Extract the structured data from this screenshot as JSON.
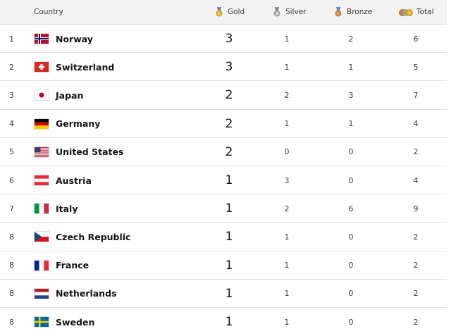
{
  "header": {
    "country": "Country",
    "gold": "Gold",
    "silver": "Silver",
    "bronze": "Bronze",
    "total": "Total"
  },
  "colors": {
    "gold": "#d4a017",
    "silver": "#9e9e9e",
    "bronze": "#c27a32",
    "header_bg": "#f2f2f2"
  },
  "rows": [
    {
      "rank": "1",
      "country": "Norway",
      "flag": "norway-flag",
      "gold": "3",
      "silver": "1",
      "bronze": "2",
      "total": "6"
    },
    {
      "rank": "2",
      "country": "Switzerland",
      "flag": "switzerland-flag",
      "gold": "3",
      "silver": "1",
      "bronze": "1",
      "total": "5"
    },
    {
      "rank": "3",
      "country": "Japan",
      "flag": "japan-flag",
      "gold": "2",
      "silver": "2",
      "bronze": "3",
      "total": "7"
    },
    {
      "rank": "4",
      "country": "Germany",
      "flag": "germany-flag",
      "gold": "2",
      "silver": "1",
      "bronze": "1",
      "total": "4"
    },
    {
      "rank": "5",
      "country": "United States",
      "flag": "usa-flag",
      "gold": "2",
      "silver": "0",
      "bronze": "0",
      "total": "2"
    },
    {
      "rank": "6",
      "country": "Austria",
      "flag": "austria-flag",
      "gold": "1",
      "silver": "3",
      "bronze": "0",
      "total": "4"
    },
    {
      "rank": "7",
      "country": "Italy",
      "flag": "italy-flag",
      "gold": "1",
      "silver": "2",
      "bronze": "6",
      "total": "9"
    },
    {
      "rank": "8",
      "country": "Czech Republic",
      "flag": "czech-flag",
      "gold": "1",
      "silver": "1",
      "bronze": "0",
      "total": "2"
    },
    {
      "rank": "8",
      "country": "France",
      "flag": "france-flag",
      "gold": "1",
      "silver": "1",
      "bronze": "0",
      "total": "2"
    },
    {
      "rank": "8",
      "country": "Netherlands",
      "flag": "netherlands-flag",
      "gold": "1",
      "silver": "1",
      "bronze": "0",
      "total": "2"
    },
    {
      "rank": "8",
      "country": "Sweden",
      "flag": "sweden-flag",
      "gold": "1",
      "silver": "1",
      "bronze": "0",
      "total": "2"
    }
  ]
}
